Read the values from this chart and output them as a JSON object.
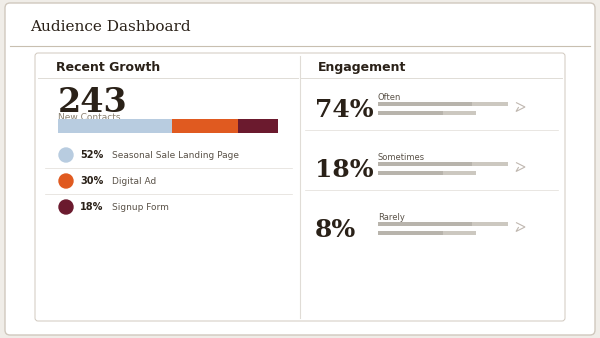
{
  "bg_outer": "#f0ede8",
  "bg_inner": "#ffffff",
  "title": "Audience Dashboard",
  "title_color": "#2a2118",
  "title_fontsize": 11,
  "header_line_color": "#c8bfb0",
  "card_border_color": "#d0c8be",
  "section_left_title": "Recent Growth",
  "section_right_title": "Engagement",
  "section_title_fontsize": 9,
  "big_number": "243",
  "big_number_label": "New Contacts",
  "big_number_fontsize": 24,
  "big_number_label_fontsize": 6.5,
  "bar_segments": [
    0.52,
    0.3,
    0.18
  ],
  "bar_colors": [
    "#b8cce0",
    "#e05a20",
    "#6b1a2e"
  ],
  "legend_items": [
    {
      "pct": "52%",
      "label": "Seasonal Sale Landing Page",
      "color": "#b8cce0"
    },
    {
      "pct": "30%",
      "label": "Digital Ad",
      "color": "#e05a20"
    },
    {
      "pct": "18%",
      "label": "Signup Form",
      "color": "#6b1a2e"
    }
  ],
  "legend_pct_fontsize": 7,
  "legend_label_fontsize": 6.5,
  "engagement_items": [
    {
      "pct": "74%",
      "label": "Often"
    },
    {
      "pct": "18%",
      "label": "Sometimes"
    },
    {
      "pct": "8%",
      "label": "Rarely"
    }
  ],
  "engagement_pct_fontsize": 18,
  "engagement_label_fontsize": 6,
  "eng_bar1_long": 0.72,
  "eng_bar1_short": 0.5,
  "eng_bar2_long": 0.72,
  "eng_bar2_short": 0.5,
  "eng_bar3_long": 0.72,
  "eng_bar3_short": 0.5,
  "bar_bg_color": "#ccc8c0",
  "bar_active_color": "#b8b4ac",
  "divider_color": "#e0dcd6",
  "number_label_color": "#8a8070",
  "legend_label_color": "#5a5248"
}
